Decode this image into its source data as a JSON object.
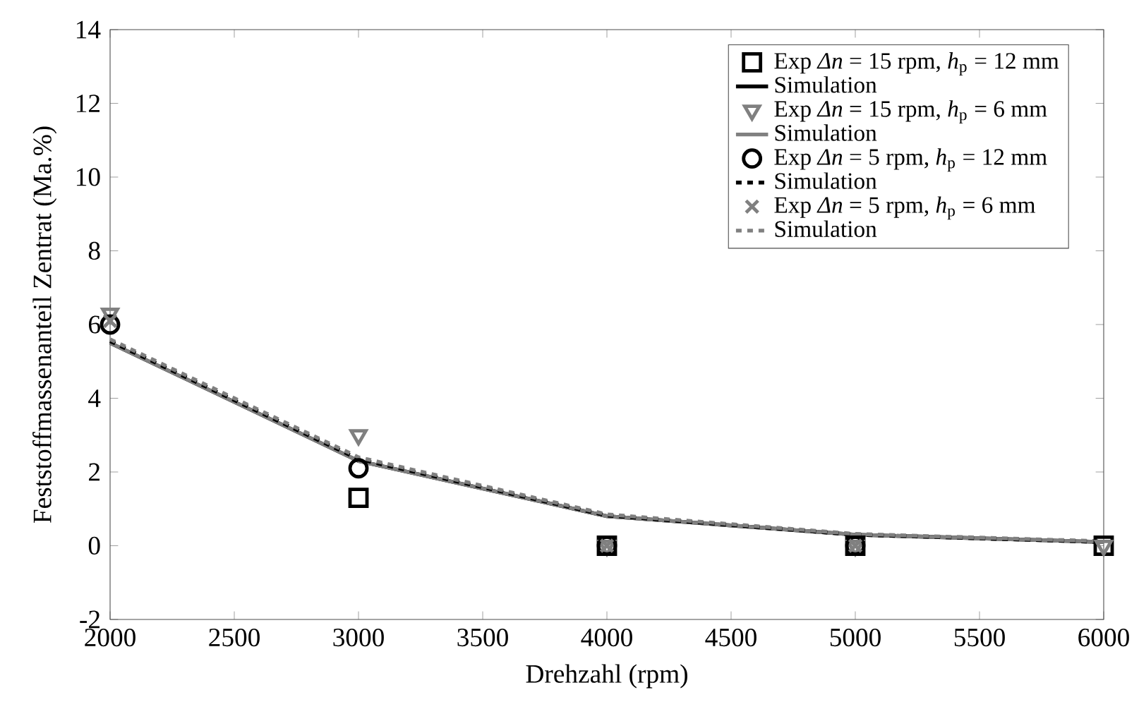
{
  "chart_data": {
    "type": "line",
    "xlabel": "Drehzahl (rpm)",
    "ylabel": "Feststoffmassenanteil Zentrat (Ma.%)",
    "x": [
      2000,
      3000,
      4000,
      5000,
      6000
    ],
    "xlim": [
      2000,
      6000
    ],
    "xticks": [
      2000,
      2500,
      3000,
      3500,
      4000,
      4500,
      5000,
      5500,
      6000
    ],
    "ylim": [
      -2,
      14
    ],
    "yticks": [
      -2,
      0,
      2,
      4,
      6,
      8,
      10,
      12,
      14
    ],
    "legend": "top right",
    "grid": false,
    "series": [
      {
        "name": "Exp *Δn* = 15 rpm, *h*$_{p}$ = 12 mm",
        "type": "scatter",
        "marker": "square",
        "color": "#000000",
        "values": [
          null,
          1.3,
          0,
          0,
          0
        ]
      },
      {
        "name": "Simulation",
        "marker": "none",
        "line_style": "solid",
        "color": "#000000",
        "values": [
          5.5,
          2.3,
          0.8,
          0.3,
          0.1
        ]
      },
      {
        "name": "Exp *Δn* = 15 rpm, *h*$_{p}$ = 6 mm",
        "type": "scatter",
        "marker": "triangle",
        "color": "#808080",
        "values": [
          6.3,
          3.0,
          0,
          0,
          0
        ]
      },
      {
        "name": "Simulation",
        "marker": "none",
        "line_style": "solid",
        "color": "#808080",
        "values": [
          5.5,
          2.3,
          0.8,
          0.3,
          0.1
        ]
      },
      {
        "name": "Exp *Δn* = 5 rpm, *h*$_{p}$ = 12 mm",
        "type": "scatter",
        "marker": "circle",
        "color": "#000000",
        "values": [
          6.0,
          2.1,
          0,
          0,
          null
        ]
      },
      {
        "name": "Simulation",
        "marker": "none",
        "line_style": "dashed",
        "color": "#000000",
        "values": [
          5.55,
          2.35,
          0.82,
          0.3,
          0.1
        ]
      },
      {
        "name": "Exp *Δn* = 5 rpm, *h*$_{p}$ = 6 mm",
        "type": "scatter",
        "marker": "cross",
        "color": "#808080",
        "values": [
          6.1,
          null,
          0,
          0,
          null
        ]
      },
      {
        "name": "Simulation",
        "marker": "none",
        "line_style": "dashed",
        "color": "#808080",
        "values": [
          5.6,
          2.4,
          0.85,
          0.32,
          0.12
        ]
      }
    ]
  }
}
